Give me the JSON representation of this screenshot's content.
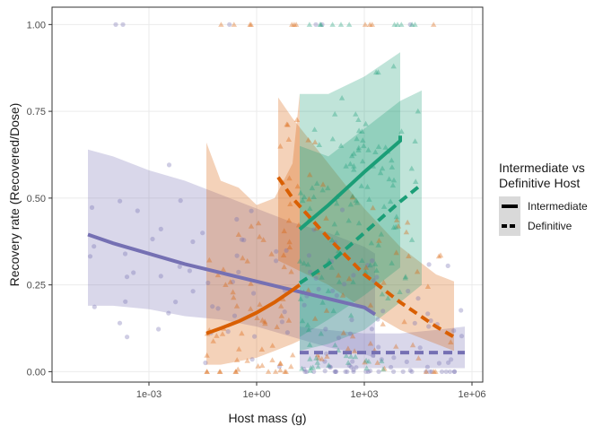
{
  "chart_data": {
    "type": "scatter",
    "x_scale": "log10",
    "xlabel": "Host mass (g)",
    "ylabel": "Recovery rate (Recovered/Dose)",
    "xlim_log10": [
      -5.7,
      6.3
    ],
    "ylim": [
      -0.03,
      1.05
    ],
    "x_ticks": [
      {
        "log10": -3,
        "label": "1e-03"
      },
      {
        "log10": 0,
        "label": "1e+00"
      },
      {
        "log10": 3,
        "label": "1e+03"
      },
      {
        "log10": 6,
        "label": "1e+06"
      }
    ],
    "y_ticks": [
      {
        "value": 0.0,
        "label": "0.00"
      },
      {
        "value": 0.25,
        "label": "0.25"
      },
      {
        "value": 0.5,
        "label": "0.50"
      },
      {
        "value": 0.75,
        "label": "0.75"
      },
      {
        "value": 1.0,
        "label": "1.00"
      }
    ],
    "grid": true,
    "legend": {
      "title_line1": "Intermediate vs",
      "title_line2": "Definitive Host",
      "position": "right",
      "entries": [
        {
          "label": "Intermediate",
          "linetype": "solid"
        },
        {
          "label": "Definitive",
          "linetype": "dashed"
        }
      ]
    },
    "series": [
      {
        "color": "#7570b3",
        "point_shape": "circle",
        "fit_intermediate": {
          "x_log10": [
            -4.7,
            -4.0,
            -3.0,
            -2.0,
            -1.0,
            0.0,
            1.0,
            2.0,
            3.0,
            3.3
          ],
          "y": [
            0.395,
            0.37,
            0.34,
            0.31,
            0.285,
            0.26,
            0.235,
            0.21,
            0.185,
            0.165
          ],
          "lower": [
            0.19,
            0.19,
            0.18,
            0.16,
            0.15,
            0.13,
            0.1,
            0.07,
            0.05,
            0.04
          ],
          "upper": [
            0.64,
            0.62,
            0.58,
            0.55,
            0.51,
            0.47,
            0.43,
            0.4,
            0.36,
            0.34
          ]
        },
        "fit_definitive": {
          "x_log10": [
            1.2,
            2.0,
            3.0,
            4.0,
            5.0,
            5.8
          ],
          "y": [
            0.055,
            0.055,
            0.055,
            0.055,
            0.055,
            0.055
          ],
          "lower": [
            0.01,
            0.01,
            0.01,
            0.01,
            0.01,
            0.01
          ],
          "upper": [
            0.13,
            0.12,
            0.11,
            0.11,
            0.12,
            0.13
          ]
        }
      },
      {
        "color": "#d95f02",
        "point_shape": "triangle",
        "fit_intermediate": {
          "x_log10": [
            -1.4,
            -1.0,
            -0.5,
            0.0,
            0.5,
            1.0,
            1.2
          ],
          "y": [
            0.11,
            0.125,
            0.145,
            0.17,
            0.2,
            0.235,
            0.25
          ],
          "lower": [
            0.02,
            0.02,
            0.03,
            0.04,
            0.06,
            0.08,
            0.09
          ],
          "upper": [
            0.66,
            0.55,
            0.53,
            0.48,
            0.5,
            0.6,
            0.8
          ]
        },
        "fit_definitive": {
          "x_log10": [
            0.6,
            1.0,
            2.0,
            3.0,
            4.0,
            5.0,
            5.5
          ],
          "y": [
            0.56,
            0.5,
            0.385,
            0.28,
            0.2,
            0.13,
            0.1
          ],
          "lower": [
            0.32,
            0.3,
            0.25,
            0.18,
            0.12,
            0.08,
            0.06
          ],
          "upper": [
            0.79,
            0.73,
            0.6,
            0.47,
            0.36,
            0.28,
            0.26
          ]
        }
      },
      {
        "color": "#1b9e77",
        "point_shape": "triangle",
        "fit_intermediate": {
          "x_log10": [
            1.2,
            2.0,
            3.0,
            4.0,
            4.0
          ],
          "y": [
            0.41,
            0.48,
            0.575,
            0.665,
            0.68
          ],
          "lower": [
            0.1,
            0.15,
            0.22,
            0.3,
            0.32
          ],
          "upper": [
            0.8,
            0.8,
            0.85,
            0.92,
            0.94
          ]
        },
        "fit_definitive": {
          "x_log10": [
            1.2,
            2.0,
            3.0,
            4.0,
            4.6
          ],
          "y": [
            0.255,
            0.31,
            0.4,
            0.49,
            0.54
          ],
          "lower": [
            0.06,
            0.08,
            0.12,
            0.2,
            0.25
          ],
          "upper": [
            0.65,
            0.62,
            0.7,
            0.78,
            0.81
          ]
        }
      }
    ]
  }
}
